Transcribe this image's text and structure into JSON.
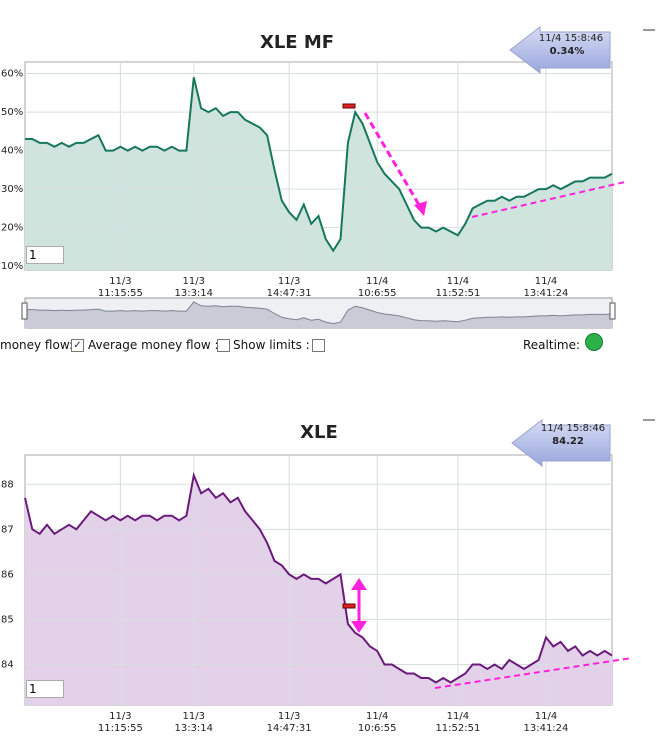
{
  "chart_data": [
    {
      "type": "area",
      "title": "XLE MF",
      "badge": {
        "time": "11/4 15:8:46",
        "value": "0.34%"
      },
      "input_value": "1",
      "categories": [
        null,
        null,
        null,
        null,
        null,
        null,
        null,
        null,
        null,
        null,
        null,
        null,
        null,
        "11/3\n11:15:55",
        null,
        null,
        null,
        null,
        null,
        null,
        null,
        null,
        null,
        "11/3\n13:3:14",
        null,
        null,
        null,
        null,
        null,
        null,
        null,
        null,
        null,
        null,
        null,
        null,
        "11/3\n14:47:31",
        null,
        null,
        null,
        null,
        null,
        null,
        null,
        null,
        null,
        null,
        null,
        "11/4\n10:6:55",
        null,
        null,
        null,
        null,
        null,
        null,
        null,
        null,
        null,
        null,
        "11/4\n11:52:51",
        null,
        null,
        null,
        null,
        null,
        null,
        null,
        null,
        null,
        null,
        null,
        "11/4\n13:41:24",
        null,
        null,
        null,
        null,
        null,
        null,
        null,
        null,
        null
      ],
      "series": [
        {
          "name": "XLE MF",
          "color": "#16775a",
          "fill": "#d0e4de",
          "values": [
            43,
            43,
            42,
            42,
            41,
            42,
            41,
            42,
            42,
            43,
            44,
            40,
            40,
            41,
            40,
            41,
            40,
            41,
            41,
            40,
            41,
            40,
            40,
            59,
            51,
            50,
            51,
            49,
            50,
            50,
            48,
            47,
            46,
            44,
            35,
            27,
            24,
            22,
            26,
            21,
            23,
            17,
            14,
            17,
            42,
            50,
            47,
            42,
            37,
            34,
            32,
            30,
            26,
            22,
            20,
            20,
            19,
            20,
            19,
            18,
            21,
            25,
            26,
            27,
            27,
            28,
            27,
            28,
            28,
            29,
            30,
            30,
            31,
            30,
            31,
            32,
            32,
            33,
            33,
            33,
            34
          ]
        }
      ],
      "ylim": [
        9,
        63
      ],
      "yticks": [
        {
          "value": 10,
          "label": "10%"
        },
        {
          "value": 20,
          "label": "20%"
        },
        {
          "value": 30,
          "label": "30%"
        },
        {
          "value": 40,
          "label": "40%"
        },
        {
          "value": 50,
          "label": "50%"
        },
        {
          "value": 60,
          "label": "60%"
        }
      ],
      "grid": true
    },
    {
      "type": "area",
      "title": "XLE",
      "badge": {
        "time": "11/4 15:8:46",
        "value": "84.22"
      },
      "input_value": "1",
      "categories": [
        null,
        null,
        null,
        null,
        null,
        null,
        null,
        null,
        null,
        null,
        null,
        null,
        null,
        "11/3\n11:15:55",
        null,
        null,
        null,
        null,
        null,
        null,
        null,
        null,
        null,
        "11/3\n13:3:14",
        null,
        null,
        null,
        null,
        null,
        null,
        null,
        null,
        null,
        null,
        null,
        null,
        "11/3\n14:47:31",
        null,
        null,
        null,
        null,
        null,
        null,
        null,
        null,
        null,
        null,
        null,
        "11/4\n10:6:55",
        null,
        null,
        null,
        null,
        null,
        null,
        null,
        null,
        null,
        null,
        "11/4\n11:52:51",
        null,
        null,
        null,
        null,
        null,
        null,
        null,
        null,
        null,
        null,
        null,
        "11/4\n13:41:24",
        null,
        null,
        null,
        null,
        null,
        null,
        null,
        null,
        null
      ],
      "series": [
        {
          "name": "XLE",
          "color": "#6a1b7a",
          "fill": "#e2d1e8",
          "values": [
            87.7,
            87.0,
            86.9,
            87.1,
            86.9,
            87.0,
            87.1,
            87.0,
            87.2,
            87.4,
            87.3,
            87.2,
            87.3,
            87.2,
            87.3,
            87.2,
            87.3,
            87.3,
            87.2,
            87.3,
            87.3,
            87.2,
            87.3,
            88.2,
            87.8,
            87.9,
            87.7,
            87.8,
            87.6,
            87.7,
            87.4,
            87.2,
            87.0,
            86.7,
            86.3,
            86.2,
            86.0,
            85.9,
            86.0,
            85.9,
            85.9,
            85.8,
            85.9,
            86.0,
            84.9,
            84.7,
            84.6,
            84.4,
            84.3,
            84.0,
            84.0,
            83.9,
            83.8,
            83.8,
            83.7,
            83.7,
            83.6,
            83.7,
            83.6,
            83.7,
            83.8,
            84.0,
            84.0,
            83.9,
            84.0,
            83.9,
            84.1,
            84.0,
            83.9,
            84.0,
            84.1,
            84.6,
            84.4,
            84.5,
            84.3,
            84.4,
            84.2,
            84.3,
            84.2,
            84.3,
            84.2
          ]
        }
      ],
      "ylim": [
        83.1,
        88.65
      ],
      "yticks": [
        84,
        85,
        86,
        87,
        88
      ],
      "grid": true
    }
  ],
  "controls": {
    "money_flow": "money flow:",
    "average_money_flow": "Average money flow :",
    "show_limits": "Show limits :",
    "realtime": "Realtime:"
  }
}
